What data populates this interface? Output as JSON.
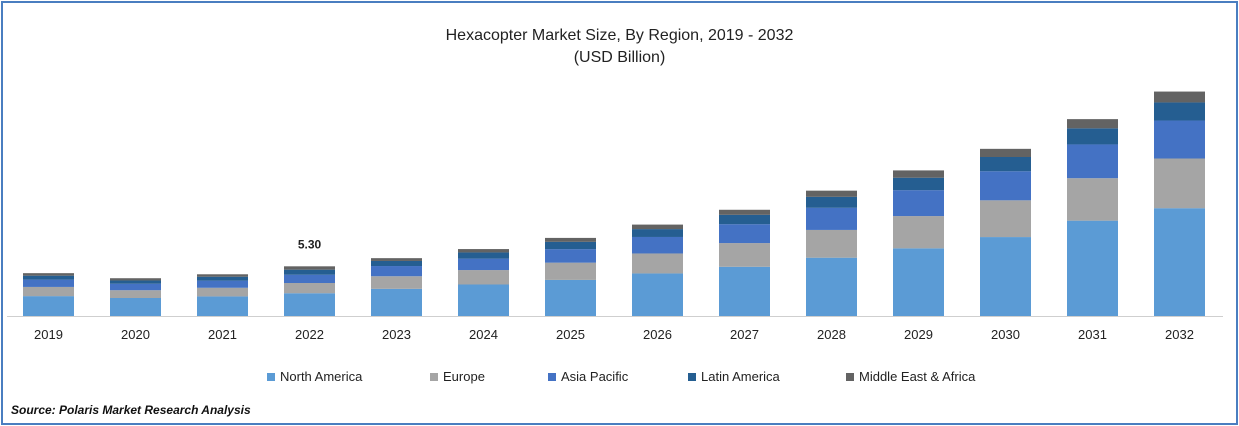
{
  "chart_data": {
    "type": "bar",
    "stacked": true,
    "title": "Hexacopter Market Size, By Region, 2019 - 2032",
    "subtitle": "(USD Billion)",
    "categories": [
      "2019",
      "2020",
      "2021",
      "2022",
      "2023",
      "2024",
      "2025",
      "2026",
      "2027",
      "2028",
      "2029",
      "2030",
      "2031",
      "2032"
    ],
    "series": [
      {
        "name": "North America",
        "color": "#5b9bd5",
        "values": [
          2.12,
          1.92,
          2.09,
          2.43,
          2.9,
          3.36,
          3.85,
          4.54,
          5.25,
          6.22,
          7.22,
          8.42,
          10.17,
          11.5
        ]
      },
      {
        "name": "Europe",
        "color": "#a5a5a5",
        "values": [
          0.98,
          0.83,
          0.92,
          1.09,
          1.34,
          1.54,
          1.84,
          2.13,
          2.53,
          2.96,
          3.44,
          3.92,
          4.53,
          5.3
        ]
      },
      {
        "name": "Asia Pacific",
        "color": "#4472c4",
        "values": [
          0.78,
          0.69,
          0.76,
          0.88,
          1.09,
          1.22,
          1.44,
          1.76,
          2.01,
          2.36,
          2.76,
          3.1,
          3.6,
          4.05
        ]
      },
      {
        "name": "Latin America",
        "color": "#255e91",
        "values": [
          0.42,
          0.35,
          0.42,
          0.54,
          0.54,
          0.66,
          0.78,
          0.84,
          1.0,
          1.17,
          1.33,
          1.52,
          1.72,
          1.93
        ]
      },
      {
        "name": "Middle East & Africa",
        "color": "#636363",
        "values": [
          0.27,
          0.24,
          0.26,
          0.36,
          0.3,
          0.36,
          0.42,
          0.48,
          0.54,
          0.66,
          0.78,
          0.87,
          0.98,
          1.16
        ]
      }
    ],
    "annotations": [
      {
        "category": "2022",
        "text": "5.30"
      }
    ],
    "ylim": [
      0,
      24.0
    ],
    "grid": false,
    "legend": "bottom"
  },
  "source": "Source: Polaris  Market Research Analysis"
}
